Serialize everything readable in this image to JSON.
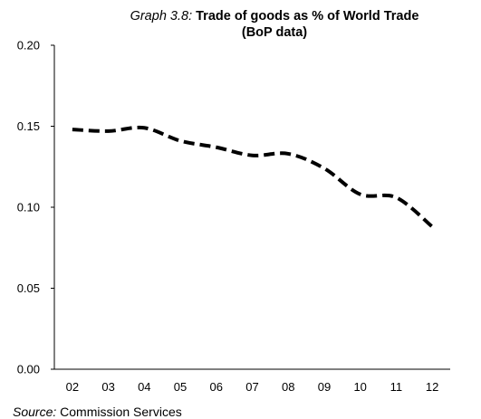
{
  "chart_data": {
    "type": "line",
    "title_prefix": "Graph 3.8:",
    "title_line1": "Trade of goods as % of World Trade",
    "title_line2": "(BoP data)",
    "categories": [
      "02",
      "03",
      "04",
      "05",
      "06",
      "07",
      "08",
      "09",
      "10",
      "11",
      "12"
    ],
    "series": [
      {
        "values": [
          0.148,
          0.147,
          0.149,
          0.141,
          0.137,
          0.132,
          0.133,
          0.124,
          0.108,
          0.106,
          0.088
        ],
        "color": "#000000",
        "style": "dashed"
      }
    ],
    "ylim": [
      0,
      0.2
    ],
    "yticks": [
      "0.00",
      "0.05",
      "0.10",
      "0.15",
      "0.20"
    ],
    "xlabel": "",
    "ylabel": "",
    "grid": false,
    "legend": "none"
  },
  "source": {
    "prefix": "Source:",
    "text": "Commission Services"
  }
}
